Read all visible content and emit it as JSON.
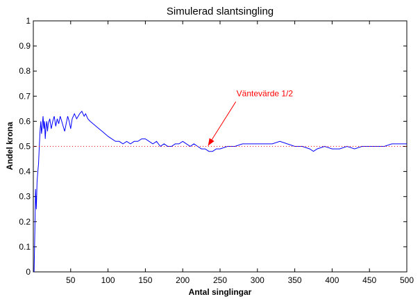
{
  "chart_data": {
    "type": "line",
    "title": "Simulerad slantsingling",
    "xlabel": "Antal singlingar",
    "ylabel": "Andel krona",
    "xlim": [
      0,
      500
    ],
    "ylim": [
      0,
      1
    ],
    "xticks": [
      50,
      100,
      150,
      200,
      250,
      300,
      350,
      400,
      450,
      500
    ],
    "yticks": [
      0,
      0.1,
      0.2,
      0.3,
      0.4,
      0.5,
      0.6,
      0.7,
      0.8,
      0.9,
      1
    ],
    "ytick_labels": [
      "0",
      "0.1",
      "0.2",
      "0.3",
      "0.4",
      "0.5",
      "0.6",
      "0.7",
      "0.8",
      "0.9",
      "1"
    ],
    "grid": false,
    "series": [
      {
        "color": "#0000ff",
        "style": "solid",
        "x": [
          1,
          2,
          3,
          4,
          5,
          6,
          7,
          8,
          9,
          10,
          11,
          12,
          13,
          14,
          15,
          16,
          17,
          18,
          19,
          20,
          22,
          24,
          26,
          28,
          30,
          32,
          34,
          36,
          38,
          40,
          42,
          44,
          46,
          48,
          50,
          52,
          55,
          58,
          60,
          62,
          65,
          68,
          70,
          73,
          76,
          80,
          84,
          88,
          92,
          96,
          100,
          105,
          110,
          115,
          120,
          125,
          130,
          135,
          140,
          145,
          150,
          155,
          160,
          165,
          170,
          175,
          180,
          185,
          190,
          195,
          200,
          205,
          210,
          215,
          220,
          225,
          230,
          235,
          240,
          245,
          250,
          260,
          270,
          280,
          290,
          300,
          310,
          320,
          330,
          340,
          350,
          360,
          370,
          375,
          380,
          390,
          400,
          410,
          420,
          430,
          440,
          450,
          460,
          470,
          480,
          485,
          490,
          500
        ],
        "y": [
          0.0,
          0.16,
          0.33,
          0.25,
          0.36,
          0.4,
          0.43,
          0.5,
          0.56,
          0.6,
          0.55,
          0.58,
          0.62,
          0.57,
          0.6,
          0.53,
          0.58,
          0.6,
          0.56,
          0.59,
          0.61,
          0.57,
          0.6,
          0.62,
          0.58,
          0.61,
          0.59,
          0.62,
          0.6,
          0.58,
          0.56,
          0.59,
          0.62,
          0.6,
          0.57,
          0.61,
          0.63,
          0.61,
          0.62,
          0.63,
          0.64,
          0.62,
          0.63,
          0.61,
          0.6,
          0.59,
          0.58,
          0.57,
          0.56,
          0.55,
          0.54,
          0.53,
          0.52,
          0.52,
          0.51,
          0.52,
          0.51,
          0.52,
          0.52,
          0.53,
          0.53,
          0.52,
          0.51,
          0.52,
          0.5,
          0.51,
          0.5,
          0.5,
          0.51,
          0.51,
          0.52,
          0.51,
          0.5,
          0.51,
          0.5,
          0.49,
          0.49,
          0.48,
          0.48,
          0.49,
          0.49,
          0.5,
          0.5,
          0.51,
          0.51,
          0.51,
          0.51,
          0.51,
          0.52,
          0.51,
          0.5,
          0.5,
          0.49,
          0.48,
          0.49,
          0.5,
          0.49,
          0.49,
          0.5,
          0.49,
          0.5,
          0.5,
          0.5,
          0.5,
          0.51,
          0.51,
          0.51,
          0.51
        ]
      },
      {
        "color": "#ff0000",
        "style": "dotted",
        "x": [
          0,
          500
        ],
        "y": [
          0.5,
          0.5
        ]
      }
    ],
    "annotations": [
      {
        "text": "Väntevärde 1/2",
        "text_x": 272,
        "text_y": 0.7,
        "arrow_to_x": 233,
        "arrow_to_y": 0.5,
        "color": "#ff0000"
      }
    ]
  }
}
